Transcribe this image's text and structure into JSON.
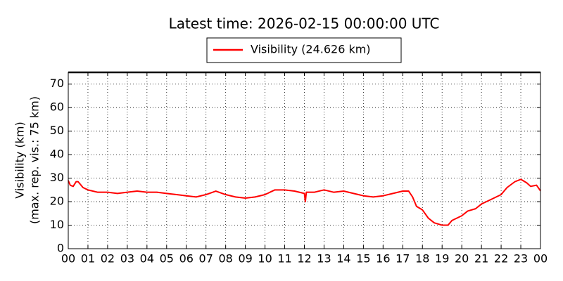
{
  "chart_data": {
    "type": "line",
    "title": "Latest time: 2026-02-15 00:00:00 UTC",
    "ylabel": [
      "Visibility (km)",
      "(max. rep. vis.: 75 km)"
    ],
    "xlim": [
      0,
      24
    ],
    "ylim": [
      0,
      75
    ],
    "xticks": [
      {
        "value": 0,
        "label": "00"
      },
      {
        "value": 1,
        "label": "01"
      },
      {
        "value": 2,
        "label": "02"
      },
      {
        "value": 3,
        "label": "03"
      },
      {
        "value": 4,
        "label": "04"
      },
      {
        "value": 5,
        "label": "05"
      },
      {
        "value": 6,
        "label": "06"
      },
      {
        "value": 7,
        "label": "07"
      },
      {
        "value": 8,
        "label": "08"
      },
      {
        "value": 9,
        "label": "09"
      },
      {
        "value": 10,
        "label": "10"
      },
      {
        "value": 11,
        "label": "11"
      },
      {
        "value": 12,
        "label": "12"
      },
      {
        "value": 13,
        "label": "13"
      },
      {
        "value": 14,
        "label": "14"
      },
      {
        "value": 15,
        "label": "15"
      },
      {
        "value": 16,
        "label": "16"
      },
      {
        "value": 17,
        "label": "17"
      },
      {
        "value": 18,
        "label": "18"
      },
      {
        "value": 19,
        "label": "19"
      },
      {
        "value": 20,
        "label": "20"
      },
      {
        "value": 21,
        "label": "21"
      },
      {
        "value": 22,
        "label": "22"
      },
      {
        "value": 23,
        "label": "23"
      },
      {
        "value": 24,
        "label": "00"
      }
    ],
    "yticks": [
      0,
      10,
      20,
      30,
      40,
      50,
      60,
      70
    ],
    "grid": true,
    "legend": "top",
    "x": [
      0,
      0.1,
      0.25,
      0.4,
      0.5,
      0.75,
      1,
      1.5,
      2,
      2.5,
      3,
      3.5,
      4,
      4.5,
      5,
      5.5,
      6,
      6.5,
      7,
      7.5,
      8,
      8.5,
      9,
      9.5,
      10,
      10.5,
      11,
      11.5,
      12,
      12.05,
      12.1,
      12.5,
      13,
      13.5,
      14,
      14.5,
      15,
      15.5,
      16,
      16.5,
      17,
      17.3,
      17.5,
      17.7,
      18,
      18.3,
      18.6,
      19,
      19.3,
      19.5,
      20,
      20.3,
      20.7,
      21,
      21.5,
      22,
      22.3,
      22.7,
      23,
      23.3,
      23.5,
      23.8,
      24
    ],
    "series": [
      {
        "name": "Visibility (24.626 km)",
        "color": "#ff0000",
        "values": [
          29,
          27,
          26.5,
          28.5,
          28.5,
          26,
          25,
          24,
          24,
          23.5,
          24,
          24.5,
          24,
          24,
          23.5,
          23,
          22.5,
          22,
          23,
          24.5,
          23,
          22,
          21.5,
          22,
          23,
          25,
          25,
          24.5,
          23.5,
          20,
          24,
          24,
          25,
          24,
          24.5,
          23.5,
          22.5,
          22,
          22.5,
          23.5,
          24.5,
          24.5,
          22,
          18,
          16.5,
          13,
          11,
          10,
          10,
          12,
          14,
          16,
          17,
          19,
          21,
          23,
          26,
          28.5,
          29.5,
          28,
          26.5,
          27,
          24.6
        ]
      }
    ]
  }
}
